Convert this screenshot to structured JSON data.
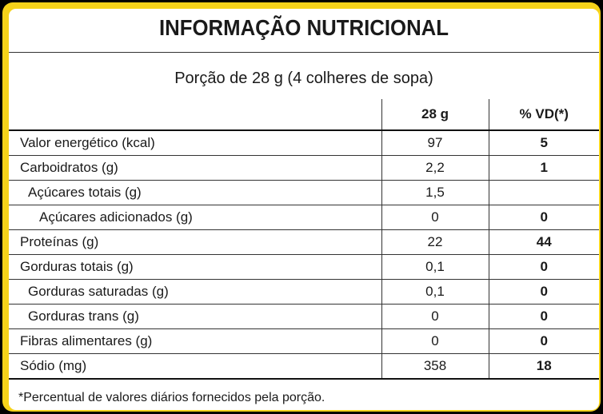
{
  "title": "INFORMAÇÃO NUTRICIONAL",
  "portion": "Porção de 28 g (4 colheres de sopa)",
  "headers": {
    "label": "",
    "amount": "28 g",
    "vd": "% VD(*)"
  },
  "rows": [
    {
      "label": "Valor energético (kcal)",
      "amount": "97",
      "vd": "5"
    },
    {
      "label": "Carboidratos (g)",
      "amount": "2,2",
      "vd": "1"
    },
    {
      "label": "Açúcares totais (g)",
      "amount": "1,5",
      "vd": ""
    },
    {
      "label": "Açúcares adicionados (g)",
      "amount": "0",
      "vd": "0"
    },
    {
      "label": "Proteínas (g)",
      "amount": "22",
      "vd": "44"
    },
    {
      "label": "Gorduras totais (g)",
      "amount": "0,1",
      "vd": "0"
    },
    {
      "label": "Gorduras saturadas (g)",
      "amount": "0,1",
      "vd": "0"
    },
    {
      "label": "Gorduras trans (g)",
      "amount": "0",
      "vd": "0"
    },
    {
      "label": "Fibras alimentares (g)",
      "amount": "0",
      "vd": "0"
    },
    {
      "label": "Sódio (mg)",
      "amount": "358",
      "vd": "18"
    }
  ],
  "footnote": "*Percentual de valores diários fornecidos pela porção.",
  "colors": {
    "frame": "#f5d21a",
    "background": "#000000",
    "panel": "#ffffff",
    "text": "#1a1a1a"
  }
}
